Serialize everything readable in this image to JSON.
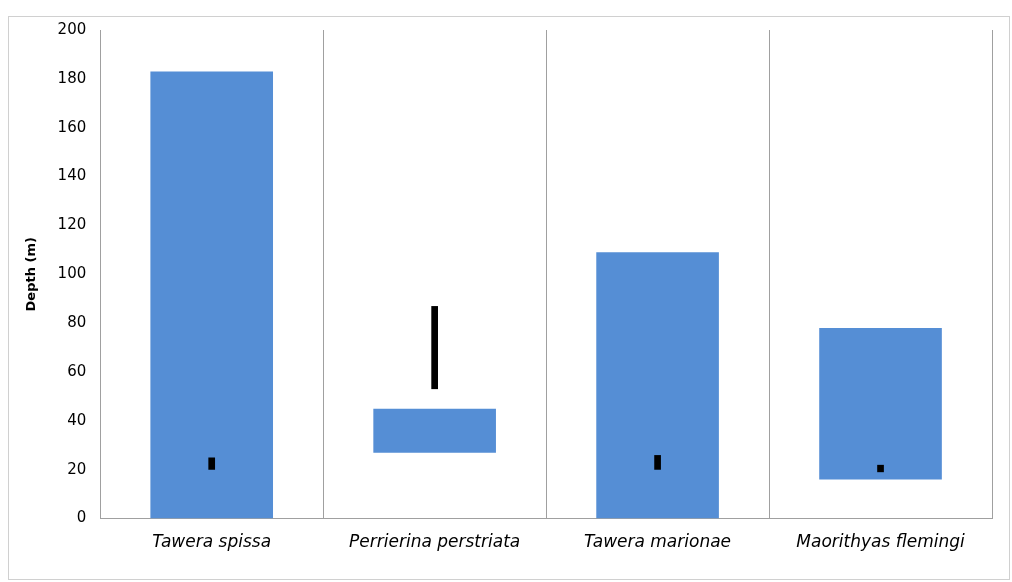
{
  "chart_data": {
    "type": "bar",
    "ylabel": "Depth (m)",
    "categories": [
      "Tawera spissa",
      "Perrierina perstriata",
      "Tawera marionae",
      "Maorithyas flemingi"
    ],
    "series": [
      {
        "color": "#558ed5",
        "base": [
          0,
          27,
          0,
          16
        ],
        "values": [
          183,
          18,
          109,
          62
        ]
      },
      {
        "color": "#000000",
        "base": [
          20,
          53,
          20,
          19
        ],
        "values": [
          5,
          34,
          6,
          3
        ]
      }
    ],
    "ylim": [
      0,
      200
    ],
    "yticks": [
      0,
      20,
      40,
      60,
      80,
      100,
      120,
      140,
      160,
      180,
      200
    ],
    "grid": "x",
    "legend": false
  }
}
